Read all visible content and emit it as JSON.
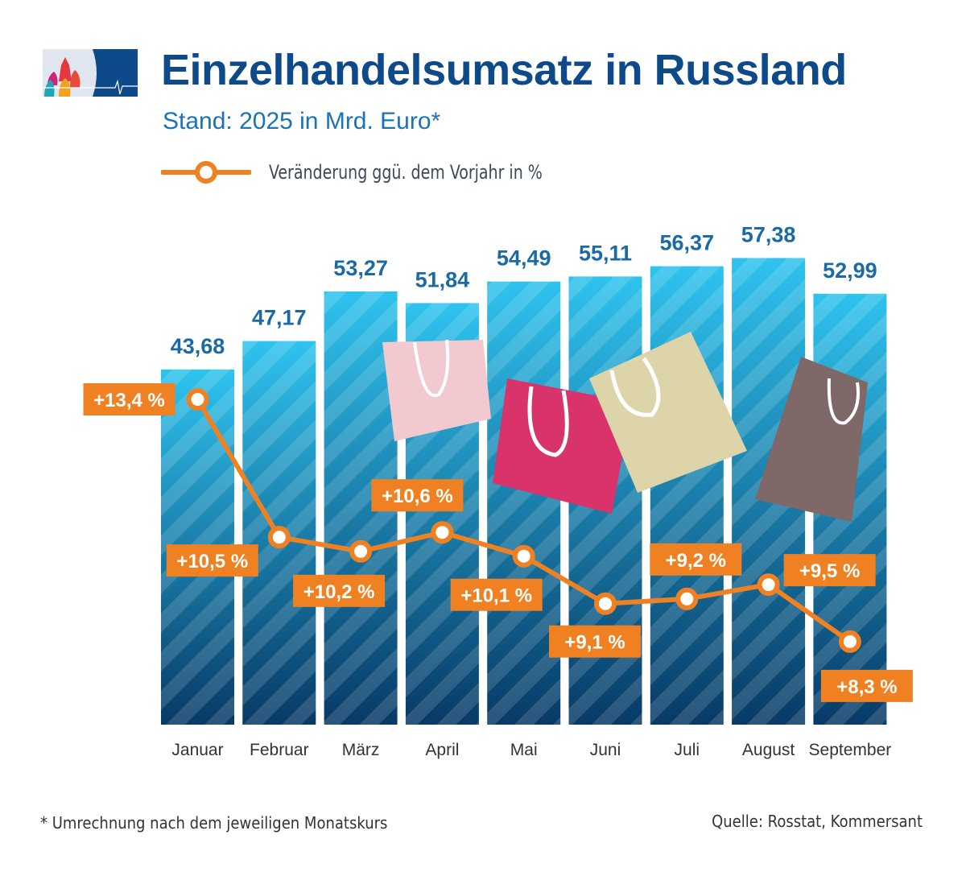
{
  "title": "Einzelhandelsumsatz in Russland",
  "subtitle": "Stand: 2025 in Mrd. Euro*",
  "footnote": "* Umrechnung nach dem jeweiligen Monatskurs",
  "source": "Quelle: Rosstat, Kommersant",
  "colors": {
    "title": "#0e4a8a",
    "bar_top": "#2ec3ee",
    "bar_bottom": "#083a66",
    "line": "#ef8123",
    "value_label": "#1b6aa5"
  },
  "chart_data": {
    "type": "bar",
    "categories": [
      "Januar",
      "Februar",
      "März",
      "April",
      "Mai",
      "Juni",
      "Juli",
      "August",
      "September"
    ],
    "series": [
      {
        "values": [
          43.68,
          47.17,
          53.27,
          51.84,
          54.49,
          55.11,
          56.37,
          57.38,
          52.99
        ],
        "labels": [
          "43,68",
          "47,17",
          "53,27",
          "51,84",
          "54,49",
          "55,11",
          "56,37",
          "57,38",
          "52,99"
        ]
      },
      {
        "name": "Veränderung ggü. dem Vorjahr in %",
        "type": "line",
        "values": [
          13.4,
          10.5,
          10.2,
          10.6,
          10.1,
          9.1,
          9.2,
          9.5,
          8.3
        ],
        "labels": [
          "+13,4 %",
          "+10,5 %",
          "+10,2 %",
          "+10,6 %",
          "+10,1 %",
          "+9,1 %",
          "+9,2 %",
          "+9,5 %",
          "+8,3 %"
        ]
      }
    ],
    "grid": false,
    "legend": "top-left"
  }
}
